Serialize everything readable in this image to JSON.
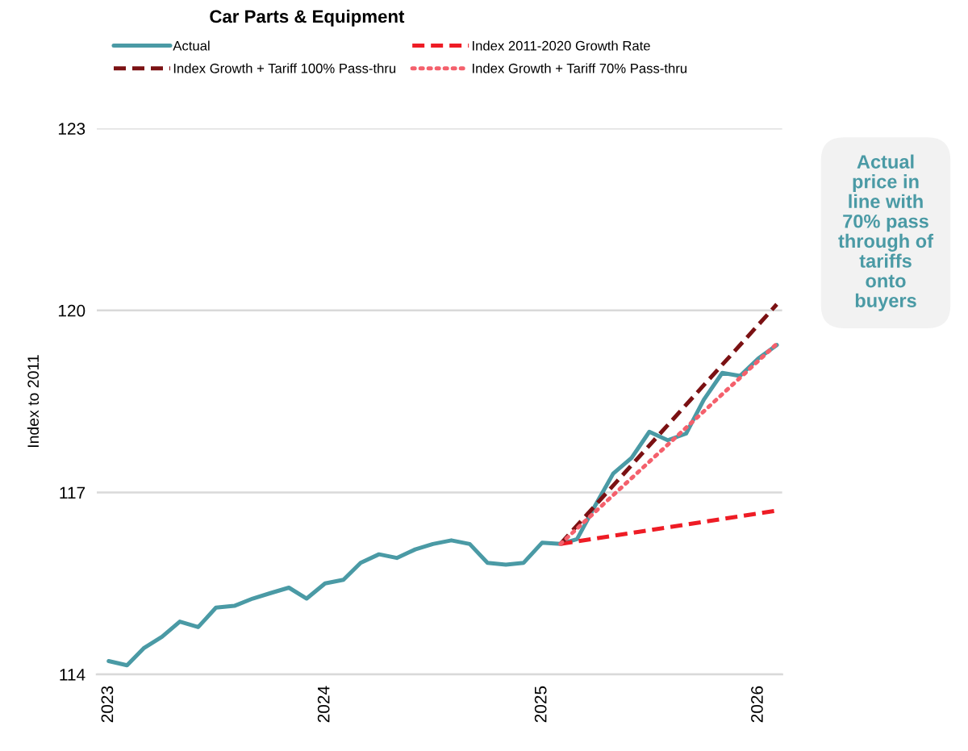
{
  "chart_data": {
    "type": "line",
    "title": "Car Parts & Equipment",
    "ylabel": "Index to 2011",
    "xlim": [
      "2022-12-12",
      "2026-02-10"
    ],
    "xticks": [
      "2023",
      "2024",
      "2025",
      "2026"
    ],
    "ylim": [
      114,
      123
    ],
    "yticks": [
      114,
      117,
      120,
      123
    ],
    "grid": "y",
    "legend": "top",
    "annotations": [
      "Actual\nprice in\nline with\n70% pass\nthrough of\ntariffs\nonto\nbuyers"
    ],
    "series": [
      {
        "name": "Actual",
        "color": "#4a9aa5",
        "line_style": "solid",
        "x": [
          "2023-01",
          "2023-02",
          "2023-03",
          "2023-04",
          "2023-05",
          "2023-06",
          "2023-07",
          "2023-08",
          "2023-09",
          "2023-10",
          "2023-11",
          "2023-12",
          "2024-01",
          "2024-02",
          "2024-03",
          "2024-04",
          "2024-05",
          "2024-06",
          "2024-07",
          "2024-08",
          "2024-09",
          "2024-10",
          "2024-11",
          "2024-12",
          "2025-01",
          "2025-02",
          "2025-03",
          "2025-04",
          "2025-05",
          "2025-06",
          "2025-07",
          "2025-08",
          "2025-09",
          "2025-10",
          "2025-11",
          "2025-12",
          "2026-01",
          "2026-02"
        ],
        "values": [
          114.22,
          114.15,
          114.43,
          114.62,
          114.87,
          114.78,
          115.1,
          115.13,
          115.25,
          115.34,
          115.43,
          115.25,
          115.5,
          115.56,
          115.84,
          115.98,
          115.92,
          116.06,
          116.15,
          116.21,
          116.15,
          115.84,
          115.81,
          115.84,
          116.17,
          116.15,
          116.23,
          116.79,
          117.31,
          117.57,
          118.0,
          117.86,
          117.97,
          118.53,
          118.97,
          118.92,
          119.21,
          119.43
        ]
      },
      {
        "name": "Index 2011-2020 Growth Rate",
        "color": "#ee1c25",
        "line_style": "dashed",
        "x": [
          "2025-02",
          "2026-02"
        ],
        "values": [
          116.15,
          116.7
        ]
      },
      {
        "name": "Index Growth + Tariff 100% Pass-thru",
        "color": "#7b1113",
        "line_style": "dashed",
        "x": [
          "2025-02",
          "2026-02"
        ],
        "values": [
          116.15,
          120.1
        ]
      },
      {
        "name": "Index Growth + Tariff 70% Pass-thru",
        "color": "#f4606c",
        "line_style": "dotted",
        "x": [
          "2025-02",
          "2026-02"
        ],
        "values": [
          116.15,
          119.45
        ]
      }
    ]
  }
}
